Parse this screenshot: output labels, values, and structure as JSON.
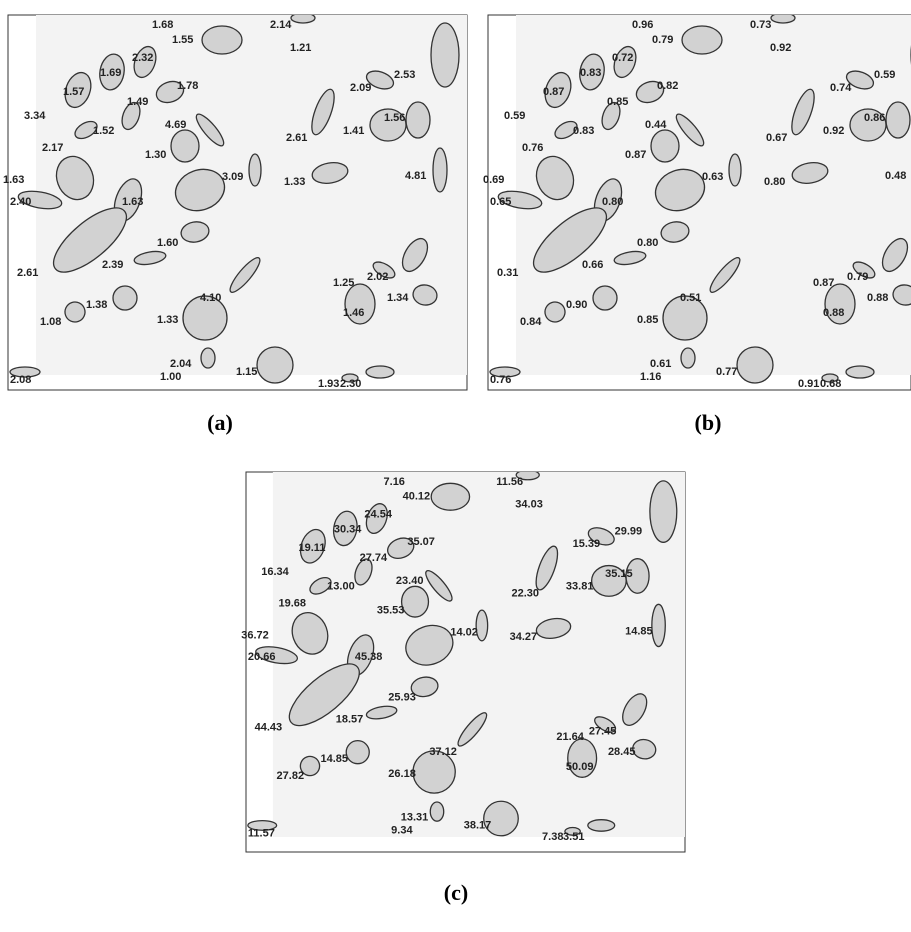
{
  "panels": [
    {
      "caption": "(a)",
      "labels": [
        "1.68",
        "2.14",
        "1.55",
        "1.21",
        "2.32",
        "1.69",
        "2.53",
        "1.57",
        "1.78",
        "2.09",
        "1.49",
        "3.34",
        "1.52",
        "4.69",
        "1.41",
        "1.56",
        "2.61",
        "2.17",
        "1.30",
        "1.63",
        "3.09",
        "1.33",
        "4.81",
        "2.40",
        "1.63",
        "1.60",
        "2.61",
        "2.39",
        "1.25",
        "2.02",
        "1.34",
        "1.38",
        "4.10",
        "1.08",
        "1.33",
        "1.46",
        "2.04",
        "1.00",
        "1.15",
        "2.08",
        "1.93",
        "2.30"
      ]
    },
    {
      "caption": "(b)",
      "labels": [
        "0.96",
        "0.73",
        "0.79",
        "0.92",
        "0.72",
        "0.83",
        "0.59",
        "0.87",
        "0.82",
        "0.74",
        "0.85",
        "0.59",
        "0.83",
        "0.44",
        "0.92",
        "0.86",
        "0.67",
        "0.76",
        "0.87",
        "0.69",
        "0.63",
        "0.80",
        "0.48",
        "0.65",
        "0.80",
        "0.80",
        "0.31",
        "0.66",
        "0.87",
        "0.79",
        "0.88",
        "0.90",
        "0.51",
        "0.84",
        "0.85",
        "0.88",
        "0.61",
        "1.16",
        "0.77",
        "0.76",
        "0.91",
        "0.68"
      ]
    },
    {
      "caption": "(c)",
      "labels": [
        "7.16",
        "11.56",
        "40.12",
        "34.03",
        "24.54",
        "30.34",
        "29.99",
        "19.11",
        "35.07",
        "15.39",
        "27.74",
        "16.34",
        "13.00",
        "23.40",
        "33.81",
        "35.15",
        "22.30",
        "19.68",
        "35.53",
        "36.72",
        "14.02",
        "34.27",
        "14.85",
        "20.66",
        "45.38",
        "25.93",
        "44.43",
        "18.57",
        "21.64",
        "27.45",
        "28.45",
        "14.85",
        "37.12",
        "27.82",
        "26.18",
        "50.09",
        "13.31",
        "9.34",
        "38.17",
        "11.57",
        "7.38",
        "3.51"
      ]
    }
  ]
}
